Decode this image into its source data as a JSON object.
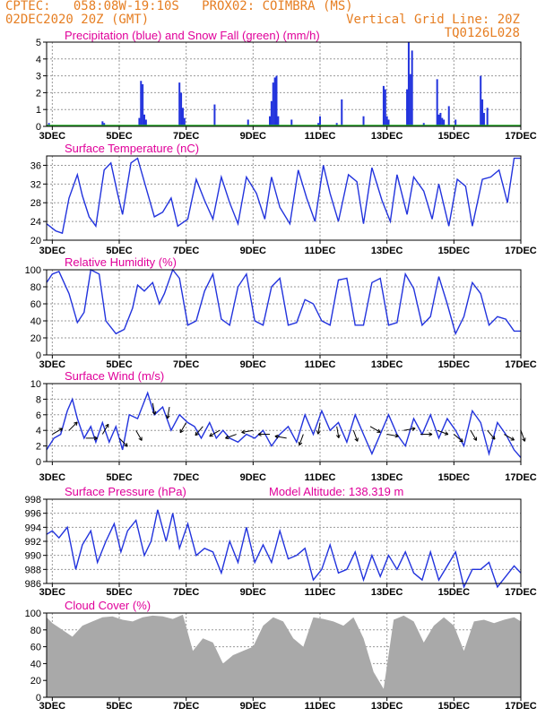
{
  "header": {
    "line1_left": "CPTEC:   058:08W-19:10S   PROX02: COIMBRA (MS)",
    "line2_left": "02DEC2020 20Z (GMT)",
    "line2_right": "Vertical Grid Line: 20Z",
    "line3_right": "TQ0126L028"
  },
  "colors": {
    "header_orange": "#e67e22",
    "panel_title_magenta": "#e0009a",
    "series_blue": "#2233dd",
    "snow_green": "#22aa22",
    "cloud_gray": "#a9a9a9",
    "arrow_black": "#000000"
  },
  "x_axis": {
    "ticks": [
      "3DEC",
      "5DEC",
      "7DEC",
      "9DEC",
      "11DEC",
      "13DEC",
      "15DEC",
      "17DEC"
    ],
    "tick_days": [
      3,
      5,
      7,
      9,
      11,
      13,
      15,
      17
    ],
    "range_days": [
      2.83,
      17.0
    ]
  },
  "chart_data": [
    {
      "type": "bar",
      "title": "Precipitation (blue) and Snow Fall (green) (mm/h)",
      "ylim": [
        0,
        5
      ],
      "yticks": [
        0,
        1,
        2,
        3,
        4,
        5
      ],
      "grid": true,
      "series": [
        {
          "name": "Precipitation",
          "x": [
            2.9,
            4.5,
            4.55,
            5.6,
            5.65,
            5.7,
            5.75,
            5.8,
            6.8,
            6.85,
            6.9,
            6.95,
            7.85,
            8.85,
            9.5,
            9.55,
            9.6,
            9.65,
            9.7,
            9.75,
            10.15,
            10.95,
            11.0,
            11.5,
            11.65,
            12.3,
            12.9,
            12.95,
            13.0,
            13.05,
            13.6,
            13.65,
            13.7,
            13.75,
            14.1,
            14.5,
            14.55,
            14.6,
            14.65,
            14.7,
            14.85,
            15.05,
            15.8,
            15.85,
            15.9,
            16.0
          ],
          "values": [
            0.2,
            0.3,
            0.2,
            0.5,
            2.7,
            2.5,
            0.7,
            0.4,
            2.6,
            2.0,
            1.1,
            0.5,
            1.3,
            0.4,
            0.6,
            1.5,
            2.6,
            2.9,
            3.0,
            0.6,
            0.4,
            0.2,
            0.6,
            0.2,
            1.6,
            0.6,
            2.4,
            2.2,
            0.6,
            0.4,
            2.2,
            5.0,
            3.1,
            4.5,
            0.2,
            2.8,
            0.7,
            0.8,
            0.5,
            0.4,
            1.2,
            0.4,
            3.0,
            1.6,
            0.8,
            1.1
          ]
        },
        {
          "name": "Snow Fall",
          "x": [],
          "values": []
        }
      ]
    },
    {
      "type": "line",
      "title": "Surface Temperature (nC)",
      "ylim": [
        20,
        38
      ],
      "yticks": [
        20,
        24,
        28,
        32,
        36
      ],
      "grid": true,
      "series": [
        {
          "name": "Surface Temperature",
          "x": [
            2.83,
            3.1,
            3.3,
            3.5,
            3.75,
            3.9,
            4.1,
            4.3,
            4.55,
            4.75,
            4.95,
            5.1,
            5.35,
            5.55,
            5.85,
            6.05,
            6.3,
            6.55,
            6.75,
            7.05,
            7.3,
            7.55,
            7.8,
            8.05,
            8.3,
            8.55,
            8.8,
            9.1,
            9.35,
            9.55,
            9.8,
            10.1,
            10.35,
            10.6,
            10.85,
            11.1,
            11.3,
            11.55,
            11.85,
            12.1,
            12.3,
            12.55,
            12.85,
            13.1,
            13.3,
            13.6,
            13.8,
            14.1,
            14.35,
            14.55,
            14.85,
            15.1,
            15.35,
            15.55,
            15.85,
            16.1,
            16.35,
            16.6,
            16.8,
            17.0
          ],
          "values": [
            23.5,
            22.0,
            21.5,
            29.0,
            34.0,
            29.5,
            25.0,
            23.0,
            35.0,
            36.5,
            30.0,
            25.5,
            36.5,
            37.5,
            30.0,
            25.0,
            26.0,
            29.0,
            23.0,
            24.5,
            33.0,
            28.5,
            24.5,
            33.5,
            28.0,
            23.5,
            33.5,
            30.0,
            24.5,
            33.5,
            27.0,
            23.5,
            35.0,
            29.0,
            24.0,
            36.0,
            30.0,
            24.0,
            34.0,
            32.5,
            23.5,
            35.5,
            28.5,
            24.0,
            34.0,
            25.5,
            33.5,
            30.5,
            24.5,
            32.0,
            23.0,
            33.0,
            31.5,
            23.0,
            33.0,
            33.5,
            35.0,
            28.0,
            37.5,
            37.5
          ]
        }
      ]
    },
    {
      "type": "line",
      "title": "Relative Humidity (%)",
      "ylim": [
        0,
        100
      ],
      "yticks": [
        0,
        20,
        40,
        60,
        80,
        100
      ],
      "grid": true,
      "series": [
        {
          "name": "Relative Humidity",
          "x": [
            2.83,
            3.0,
            3.2,
            3.5,
            3.75,
            3.95,
            4.15,
            4.4,
            4.6,
            4.9,
            5.15,
            5.4,
            5.55,
            5.75,
            6.0,
            6.2,
            6.35,
            6.6,
            6.8,
            7.05,
            7.3,
            7.55,
            7.8,
            8.05,
            8.3,
            8.55,
            8.8,
            9.05,
            9.3,
            9.55,
            9.8,
            10.05,
            10.3,
            10.55,
            10.8,
            11.05,
            11.3,
            11.55,
            11.8,
            12.05,
            12.3,
            12.55,
            12.8,
            13.05,
            13.3,
            13.55,
            13.8,
            14.05,
            14.3,
            14.55,
            14.8,
            15.05,
            15.3,
            15.55,
            15.8,
            16.05,
            16.3,
            16.55,
            16.8,
            17.0
          ],
          "values": [
            85.0,
            95.0,
            98.0,
            72.0,
            38.0,
            50.0,
            100.0,
            95.0,
            40.0,
            25.0,
            30.0,
            55.0,
            82.0,
            75.0,
            85.0,
            60.0,
            72.0,
            100.0,
            90.0,
            35.0,
            40.0,
            75.0,
            95.0,
            42.0,
            35.0,
            80.0,
            95.0,
            40.0,
            35.0,
            80.0,
            90.0,
            35.0,
            38.0,
            65.0,
            60.0,
            40.0,
            35.0,
            88.0,
            90.0,
            35.0,
            35.0,
            85.0,
            90.0,
            35.0,
            38.0,
            95.0,
            78.0,
            35.0,
            45.0,
            92.0,
            60.0,
            25.0,
            45.0,
            85.0,
            72.0,
            35.0,
            45.0,
            42.0,
            28.0,
            28.0
          ]
        }
      ]
    },
    {
      "type": "line",
      "title": "Surface Wind (m/s)",
      "ylim": [
        0,
        10
      ],
      "yticks": [
        0,
        2,
        4,
        6,
        8,
        10
      ],
      "grid": true,
      "series": [
        {
          "name": "Surface Wind",
          "x": [
            2.83,
            3.05,
            3.25,
            3.45,
            3.6,
            3.75,
            3.95,
            4.15,
            4.3,
            4.5,
            4.7,
            4.9,
            5.1,
            5.3,
            5.55,
            5.85,
            6.05,
            6.3,
            6.55,
            6.8,
            7.05,
            7.25,
            7.45,
            7.7,
            7.9,
            8.1,
            8.3,
            8.55,
            8.8,
            9.05,
            9.3,
            9.55,
            9.8,
            10.05,
            10.3,
            10.55,
            10.8,
            11.05,
            11.3,
            11.55,
            11.8,
            12.05,
            12.3,
            12.55,
            12.8,
            13.05,
            13.3,
            13.55,
            13.8,
            14.05,
            14.3,
            14.55,
            14.8,
            15.05,
            15.3,
            15.55,
            15.8,
            16.05,
            16.3,
            16.55,
            16.8,
            17.0
          ],
          "values": [
            1.5,
            3.0,
            3.5,
            6.5,
            8.0,
            5.5,
            3.0,
            4.5,
            2.5,
            5.0,
            2.5,
            4.5,
            1.5,
            6.0,
            5.5,
            8.8,
            6.0,
            7.0,
            4.0,
            6.0,
            5.0,
            4.5,
            3.0,
            5.0,
            3.0,
            4.0,
            3.0,
            2.5,
            3.5,
            3.0,
            4.0,
            2.0,
            3.5,
            4.5,
            2.5,
            6.0,
            3.5,
            6.5,
            4.0,
            5.0,
            2.5,
            6.0,
            3.5,
            1.0,
            3.5,
            6.0,
            3.5,
            2.0,
            5.5,
            3.5,
            6.0,
            3.0,
            5.5,
            4.0,
            2.0,
            6.5,
            5.0,
            1.0,
            5.0,
            3.5,
            1.5,
            0.5
          ]
        },
        {
          "name": "Wind direction arrows",
          "x": [
            3.0,
            3.5,
            4.0,
            4.5,
            5.0,
            5.5,
            6.0,
            6.5,
            7.0,
            7.5,
            8.0,
            8.5,
            9.0,
            9.5,
            10.0,
            10.5,
            11.0,
            11.5,
            12.0,
            12.5,
            13.0,
            13.5,
            14.0,
            14.5,
            15.0,
            15.5,
            16.0,
            16.5,
            17.0
          ],
          "values": [
            3.5,
            4.0,
            3.0,
            3.5,
            3.0,
            4.0,
            7.5,
            7.0,
            5.0,
            4.5,
            4.0,
            3.5,
            4.0,
            3.5,
            3.0,
            3.5,
            5.0,
            4.5,
            4.0,
            4.5,
            3.5,
            4.0,
            3.5,
            4.0,
            3.5,
            4.0,
            4.0,
            3.5,
            4.0
          ],
          "direction_deg": [
            60,
            45,
            90,
            30,
            135,
            150,
            170,
            190,
            210,
            220,
            240,
            250,
            260,
            270,
            280,
            200,
            190,
            170,
            160,
            120,
            100,
            80,
            90,
            110,
            130,
            150,
            140,
            120,
            160
          ]
        }
      ]
    },
    {
      "type": "line",
      "title": "Surface Pressure (hPa)",
      "annotation": "Model Altitude: 138.319 m",
      "ylim": [
        986,
        998
      ],
      "yticks": [
        986,
        988,
        990,
        992,
        994,
        996,
        998
      ],
      "grid": true,
      "series": [
        {
          "name": "Surface Pressure",
          "x": [
            2.83,
            3.0,
            3.2,
            3.45,
            3.7,
            3.9,
            4.15,
            4.35,
            4.6,
            4.85,
            5.05,
            5.25,
            5.5,
            5.75,
            5.95,
            6.15,
            6.4,
            6.6,
            6.8,
            7.05,
            7.3,
            7.55,
            7.8,
            8.05,
            8.3,
            8.55,
            8.8,
            9.05,
            9.3,
            9.55,
            9.8,
            10.05,
            10.3,
            10.55,
            10.8,
            11.05,
            11.3,
            11.55,
            11.8,
            12.05,
            12.3,
            12.55,
            12.8,
            13.05,
            13.3,
            13.55,
            13.8,
            14.05,
            14.3,
            14.55,
            14.8,
            15.05,
            15.3,
            15.55,
            15.8,
            16.05,
            16.3,
            16.55,
            16.8,
            17.0
          ],
          "values": [
            993.0,
            993.5,
            992.5,
            994.0,
            988.0,
            991.5,
            993.5,
            989.0,
            992.0,
            994.5,
            990.5,
            993.5,
            995.0,
            990.0,
            992.0,
            996.5,
            992.0,
            996.0,
            991.0,
            994.5,
            990.0,
            991.0,
            990.5,
            987.5,
            992.0,
            989.0,
            994.0,
            989.0,
            991.5,
            989.0,
            993.5,
            989.5,
            990.0,
            991.0,
            986.5,
            988.0,
            991.5,
            987.5,
            988.0,
            990.5,
            986.5,
            990.0,
            987.0,
            990.0,
            988.0,
            990.5,
            987.5,
            986.5,
            990.5,
            986.5,
            988.5,
            990.5,
            985.5,
            988.0,
            988.0,
            989.0,
            985.5,
            987.0,
            988.5,
            987.5
          ]
        }
      ]
    },
    {
      "type": "area",
      "title": "Cloud Cover (%)",
      "ylim": [
        0,
        100
      ],
      "yticks": [
        0,
        20,
        40,
        60,
        80,
        100
      ],
      "grid": true,
      "series": [
        {
          "name": "Cloud Cover",
          "x": [
            2.83,
            3.0,
            3.3,
            3.6,
            3.9,
            4.2,
            4.5,
            4.8,
            5.1,
            5.4,
            5.7,
            6.0,
            6.3,
            6.6,
            6.9,
            7.2,
            7.5,
            7.8,
            8.1,
            8.4,
            8.7,
            9.0,
            9.3,
            9.6,
            9.9,
            10.2,
            10.5,
            10.8,
            11.1,
            11.4,
            11.7,
            12.0,
            12.3,
            12.6,
            12.9,
            13.2,
            13.5,
            13.8,
            14.1,
            14.4,
            14.7,
            15.0,
            15.3,
            15.6,
            15.9,
            16.2,
            16.5,
            16.8,
            17.0
          ],
          "values": [
            95,
            88,
            80,
            72,
            85,
            90,
            95,
            96,
            92,
            90,
            95,
            97,
            96,
            93,
            98,
            55,
            70,
            65,
            40,
            50,
            55,
            60,
            85,
            95,
            90,
            70,
            60,
            95,
            93,
            90,
            85,
            95,
            70,
            30,
            10,
            92,
            97,
            90,
            65,
            85,
            95,
            85,
            55,
            90,
            92,
            88,
            92,
            95,
            90
          ]
        }
      ]
    }
  ]
}
